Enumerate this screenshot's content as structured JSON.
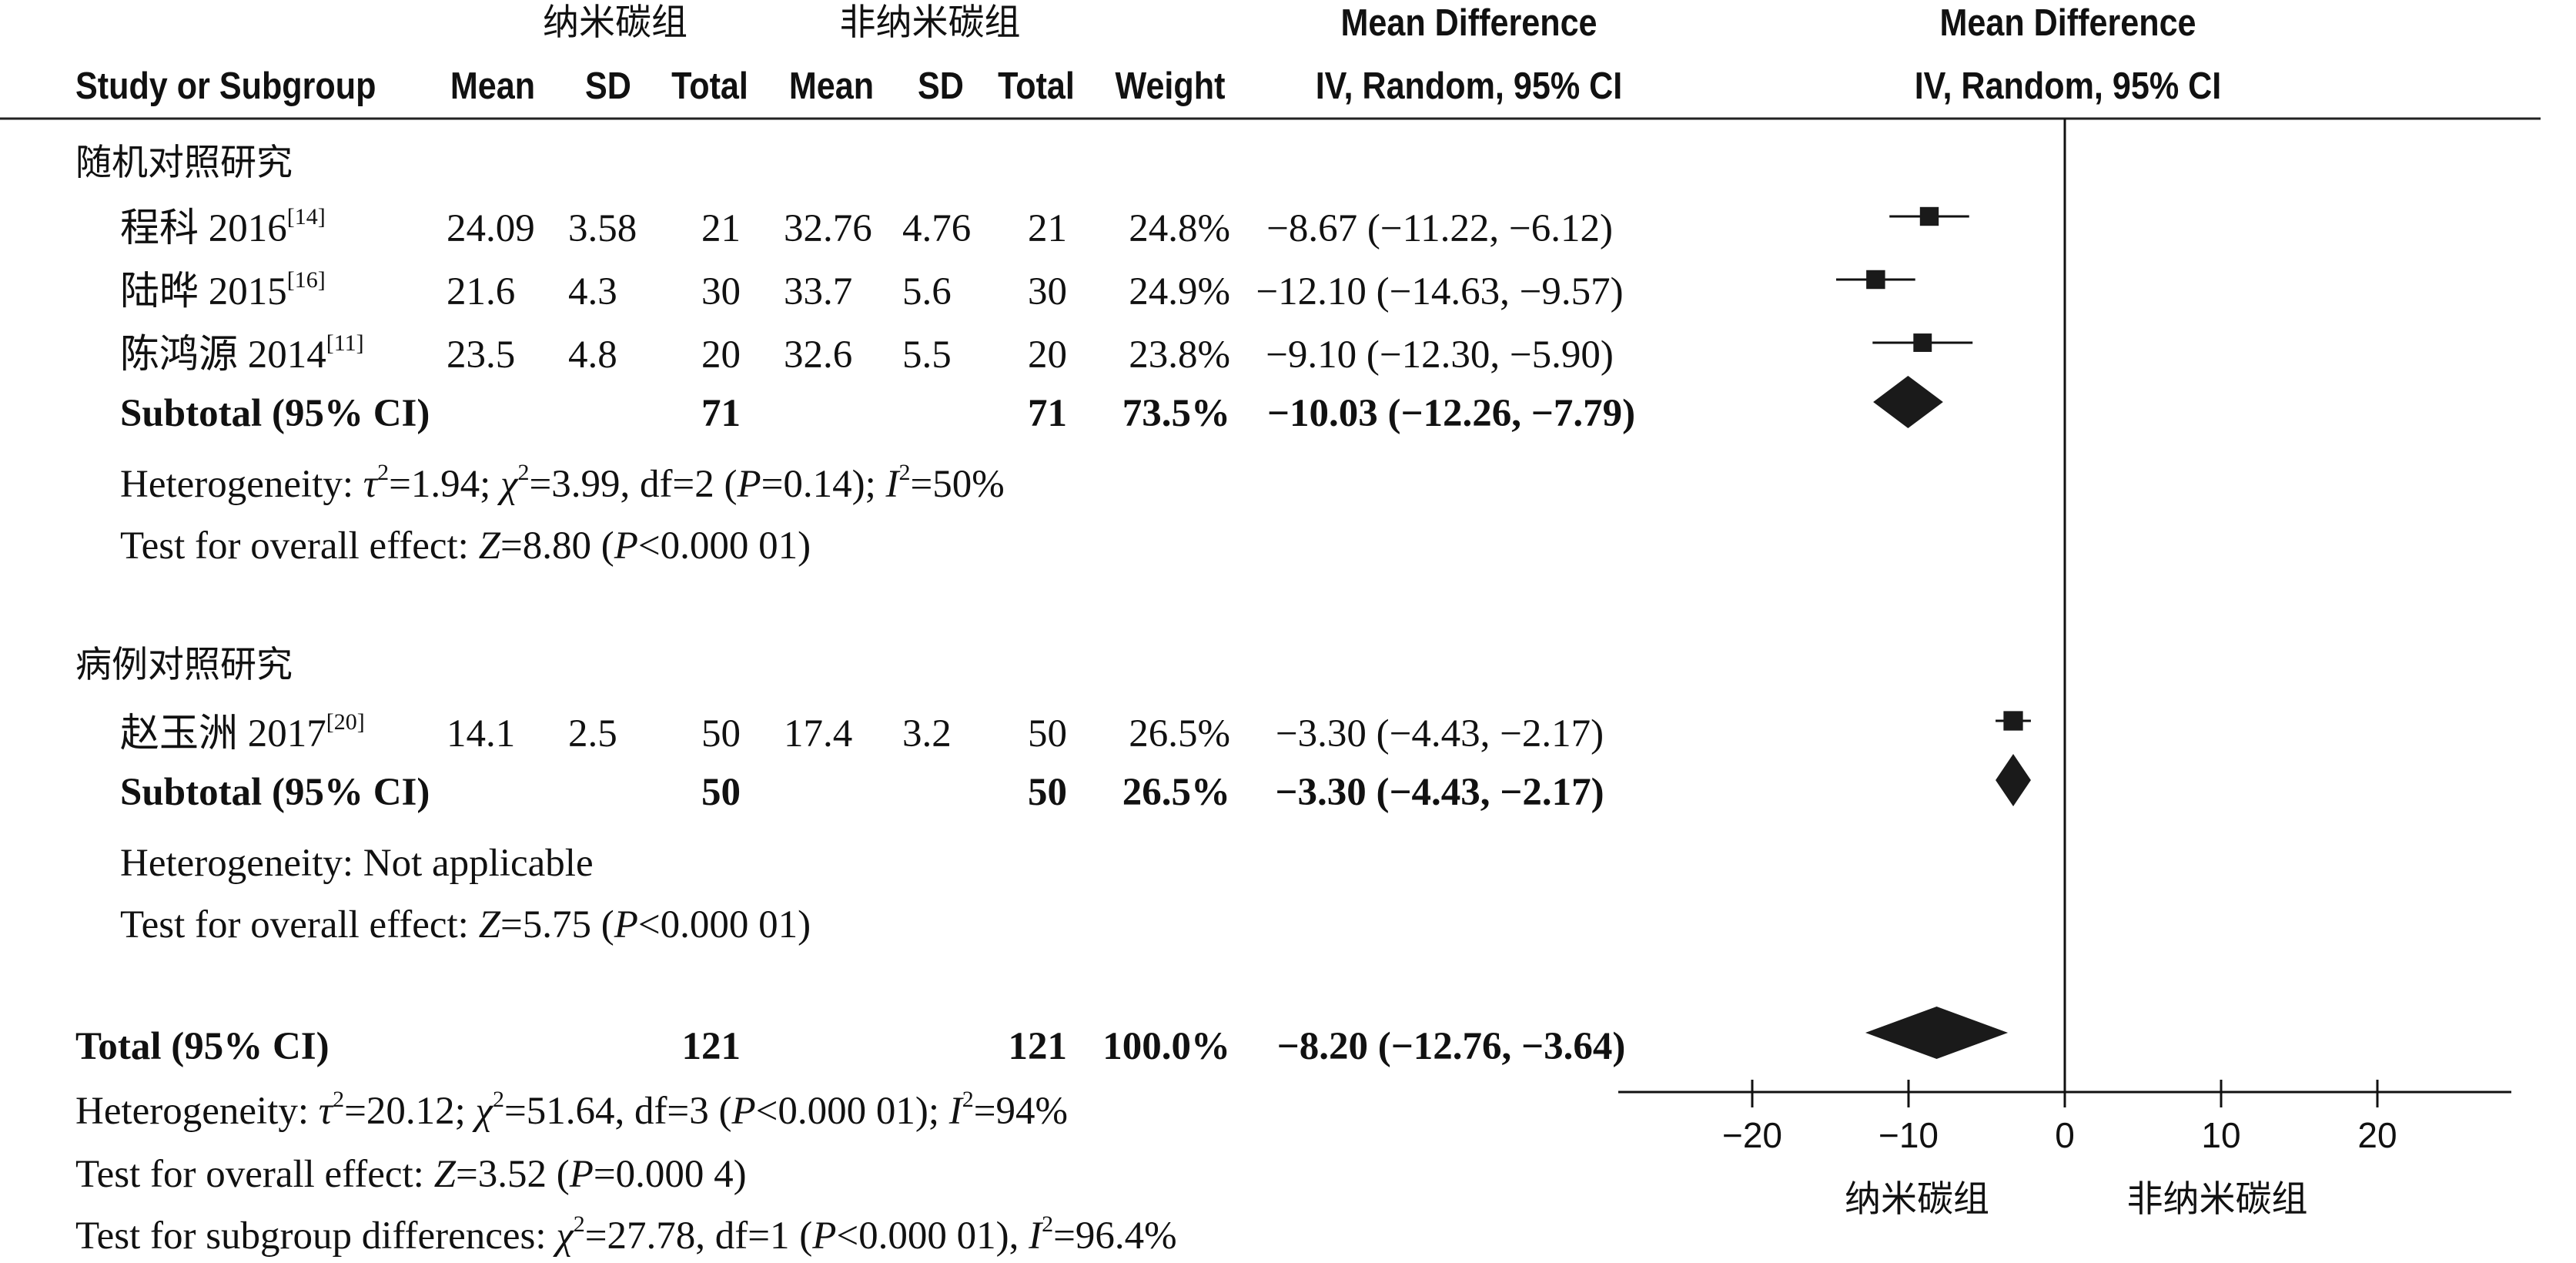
{
  "header": {
    "group1": "纳米碳组",
    "group2": "非纳米碳组",
    "md_title": "Mean Difference",
    "md_method": "IV, Random, 95% CI",
    "plot_title": "Mean Difference",
    "plot_method": "IV, Random, 95% CI",
    "study_col": "Study or Subgroup",
    "mean1": "Mean",
    "sd1": "SD",
    "total1": "Total",
    "mean2": "Mean",
    "sd2": "SD",
    "total2": "Total",
    "weight": "Weight"
  },
  "subgroups": [
    {
      "name": "随机对照研究",
      "studies": [
        {
          "name": "程科 2016",
          "ref": "[14]",
          "mean1": "24.09",
          "sd1": "3.58",
          "total1": "21",
          "mean2": "32.76",
          "sd2": "4.76",
          "total2": "21",
          "weight": "24.8%",
          "ci": "−8.67 (−11.22, −6.12)"
        },
        {
          "name": "陆晔 2015",
          "ref": "[16]",
          "mean1": "21.6",
          "sd1": "4.3",
          "total1": "30",
          "mean2": "33.7",
          "sd2": "5.6",
          "total2": "30",
          "weight": "24.9%",
          "ci": "−12.10 (−14.63, −9.57)"
        },
        {
          "name": "陈鸿源 2014",
          "ref": "[11]",
          "mean1": "23.5",
          "sd1": "4.8",
          "total1": "20",
          "mean2": "32.6",
          "sd2": "5.5",
          "total2": "20",
          "weight": "23.8%",
          "ci": "−9.10 (−12.30, −5.90)"
        }
      ],
      "subtotal": {
        "label": "Subtotal (95% CI)",
        "total1": "71",
        "total2": "71",
        "weight": "73.5%",
        "ci": "−10.03 (−12.26, −7.79)"
      },
      "heterogeneity": {
        "prefix": "Heterogeneity: ",
        "tau": "τ",
        "tau_rest": "=1.94; ",
        "chi": "χ",
        "chi_rest": "=3.99, df=2 (",
        "p": "P",
        "p_rest": "=0.14); ",
        "i": "I",
        "i_rest": "=50%"
      },
      "overall": {
        "prefix": "Test for overall effect: ",
        "z": "Z",
        "z_rest": "=8.80 (",
        "p": "P",
        "p_rest": "<0.000 01)"
      }
    },
    {
      "name": "病例对照研究",
      "studies": [
        {
          "name": "赵玉洲 2017",
          "ref": "[20]",
          "mean1": "14.1",
          "sd1": "2.5",
          "total1": "50",
          "mean2": "17.4",
          "sd2": "3.2",
          "total2": "50",
          "weight": "26.5%",
          "ci": "−3.30 (−4.43, −2.17)"
        }
      ],
      "subtotal": {
        "label": "Subtotal (95% CI)",
        "total1": "50",
        "total2": "50",
        "weight": "26.5%",
        "ci": "−3.30 (−4.43, −2.17)"
      },
      "heterogeneity": {
        "text": "Heterogeneity: Not applicable"
      },
      "overall": {
        "prefix": "Test for overall effect: ",
        "z": "Z",
        "z_rest": "=5.75 (",
        "p": "P",
        "p_rest": "<0.000 01)"
      }
    }
  ],
  "total": {
    "label": "Total (95% CI)",
    "total1": "121",
    "total2": "121",
    "weight": "100.0%",
    "ci": "−8.20 (−12.76, −3.64)",
    "heterogeneity": {
      "prefix": "Heterogeneity: ",
      "tau": "τ",
      "tau_rest": "=20.12; ",
      "chi": "χ",
      "chi_rest": "=51.64, df=3 (",
      "p": "P",
      "p_rest": "<0.000 01); ",
      "i": "I",
      "i_rest": "=94%"
    },
    "overall": {
      "prefix": "Test for overall effect: ",
      "z": "Z",
      "z_rest": "=3.52 (",
      "p": "P",
      "p_rest": "=0.000 4)"
    },
    "subgroup_diff": {
      "prefix": "Test for subgroup differences: ",
      "chi": "χ",
      "chi_rest": "=27.78, df=1 (",
      "p": "P",
      "p_rest": "<0.000 01), ",
      "i": "I",
      "i_rest": "=96.4%"
    }
  },
  "superscript_two": "2",
  "axis": {
    "favours_left": "纳米碳组",
    "favours_right": "非纳米碳组"
  },
  "chart_data": {
    "type": "forest",
    "xlim": [
      -30,
      30
    ],
    "xticks": [
      -20,
      -10,
      0,
      10,
      20
    ],
    "xtick_labels": [
      "−20",
      "−10",
      "0",
      "10",
      "20"
    ],
    "studies": [
      {
        "name": "程科 2016",
        "md": -8.67,
        "lo": -11.22,
        "hi": -6.12,
        "weight": 24.8
      },
      {
        "name": "陆晔 2015",
        "md": -12.1,
        "lo": -14.63,
        "hi": -9.57,
        "weight": 24.9
      },
      {
        "name": "陈鸿源 2014",
        "md": -9.1,
        "lo": -12.3,
        "hi": -5.9,
        "weight": 23.8
      },
      {
        "name": "赵玉洲 2017",
        "md": -3.3,
        "lo": -4.43,
        "hi": -2.17,
        "weight": 26.5
      }
    ],
    "diamonds": [
      {
        "name": "Subtotal 随机对照研究",
        "md": -10.03,
        "lo": -12.26,
        "hi": -7.79
      },
      {
        "name": "Subtotal 病例对照研究",
        "md": -3.3,
        "lo": -4.43,
        "hi": -2.17
      },
      {
        "name": "Total",
        "md": -8.2,
        "lo": -12.76,
        "hi": -3.64
      }
    ]
  }
}
